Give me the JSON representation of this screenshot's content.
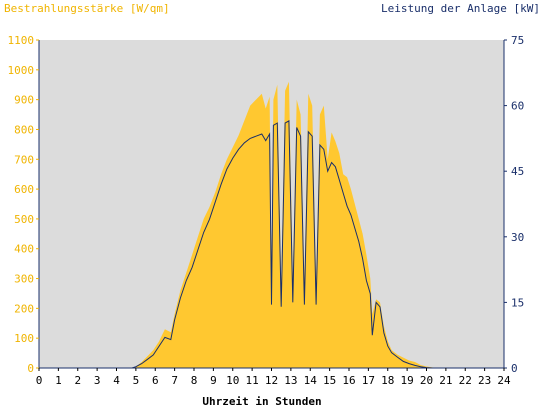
{
  "chart_data": {
    "type": "area",
    "ylabel_left": "Bestrahlungsstärke [W/qm]",
    "ylabel_right": "Leistung der Anlage [kW]",
    "xlabel": "Uhrzeit in Stunden",
    "xlim": [
      0,
      24
    ],
    "ylim_left": [
      0,
      1100
    ],
    "ylim_right": [
      0,
      75
    ],
    "x_ticks": [
      0,
      1,
      2,
      3,
      4,
      5,
      6,
      7,
      8,
      9,
      10,
      11,
      12,
      13,
      14,
      15,
      16,
      17,
      18,
      19,
      20,
      21,
      22,
      23,
      24
    ],
    "y_ticks_left": [
      0,
      100,
      200,
      300,
      400,
      500,
      600,
      700,
      800,
      900,
      1000,
      1100
    ],
    "y_ticks_right": [
      0,
      15,
      30,
      45,
      60,
      75
    ],
    "colors": {
      "plot_background": "#dcdcdc",
      "irradiance_fill": "#ffc830",
      "power_line": "#1a2f6a",
      "left_axis_text": "#f0b400",
      "right_axis_text": "#1a2f6a",
      "axis_line": "#1a2f6a"
    },
    "series": [
      {
        "axis": "left",
        "style": "area",
        "x": [
          4.8,
          5.0,
          5.3,
          5.6,
          5.9,
          6.2,
          6.5,
          6.8,
          7.0,
          7.3,
          7.6,
          7.9,
          8.2,
          8.5,
          8.8,
          9.1,
          9.4,
          9.7,
          10.0,
          10.3,
          10.6,
          10.9,
          11.2,
          11.5,
          11.7,
          11.9,
          12.0,
          12.1,
          12.3,
          12.5,
          12.7,
          12.9,
          13.1,
          13.3,
          13.5,
          13.7,
          13.9,
          14.1,
          14.3,
          14.5,
          14.7,
          14.9,
          15.1,
          15.3,
          15.5,
          15.7,
          15.9,
          16.1,
          16.3,
          16.5,
          16.7,
          16.9,
          17.1,
          17.2,
          17.4,
          17.6,
          17.8,
          18.0,
          18.2,
          18.5,
          18.8,
          19.1,
          19.4,
          19.7,
          20.0,
          20.3,
          20.6
        ],
        "values": [
          0,
          5,
          20,
          40,
          60,
          90,
          130,
          120,
          180,
          260,
          320,
          380,
          440,
          500,
          540,
          590,
          650,
          700,
          740,
          780,
          830,
          880,
          900,
          920,
          870,
          910,
          300,
          900,
          950,
          290,
          930,
          960,
          310,
          900,
          850,
          300,
          920,
          880,
          300,
          850,
          880,
          700,
          790,
          760,
          720,
          650,
          640,
          600,
          550,
          500,
          450,
          380,
          300,
          180,
          230,
          220,
          140,
          90,
          60,
          45,
          35,
          25,
          20,
          10,
          5,
          2,
          0
        ]
      },
      {
        "axis": "right",
        "style": "line",
        "x": [
          4.8,
          5.0,
          5.3,
          5.6,
          5.9,
          6.2,
          6.5,
          6.8,
          7.0,
          7.3,
          7.6,
          7.9,
          8.2,
          8.5,
          8.8,
          9.1,
          9.4,
          9.7,
          10.0,
          10.3,
          10.6,
          10.9,
          11.2,
          11.5,
          11.7,
          11.9,
          12.0,
          12.1,
          12.3,
          12.5,
          12.7,
          12.9,
          13.1,
          13.3,
          13.5,
          13.7,
          13.9,
          14.1,
          14.3,
          14.5,
          14.7,
          14.9,
          15.1,
          15.3,
          15.5,
          15.7,
          15.9,
          16.1,
          16.3,
          16.5,
          16.7,
          16.9,
          17.1,
          17.2,
          17.4,
          17.6,
          17.8,
          18.0,
          18.2,
          18.5,
          18.8,
          19.1,
          19.4,
          19.7,
          20.0,
          20.3,
          20.6
        ],
        "values": [
          0,
          0.3,
          1,
          2,
          3,
          5,
          7,
          6.5,
          11,
          16,
          20,
          23,
          27,
          31,
          34,
          38,
          42,
          45.5,
          48,
          50,
          51.5,
          52.5,
          53,
          53.5,
          52,
          53.5,
          14.5,
          55.5,
          56,
          14,
          56,
          56.5,
          15,
          55,
          53,
          14.5,
          54,
          53,
          14.5,
          51,
          50,
          45,
          47,
          46,
          43,
          40,
          37,
          35,
          32,
          29,
          25,
          20,
          17,
          7.5,
          15,
          14,
          8,
          5,
          3.5,
          2.5,
          1.5,
          1,
          0.6,
          0.3,
          0.1,
          0,
          0
        ]
      }
    ]
  }
}
